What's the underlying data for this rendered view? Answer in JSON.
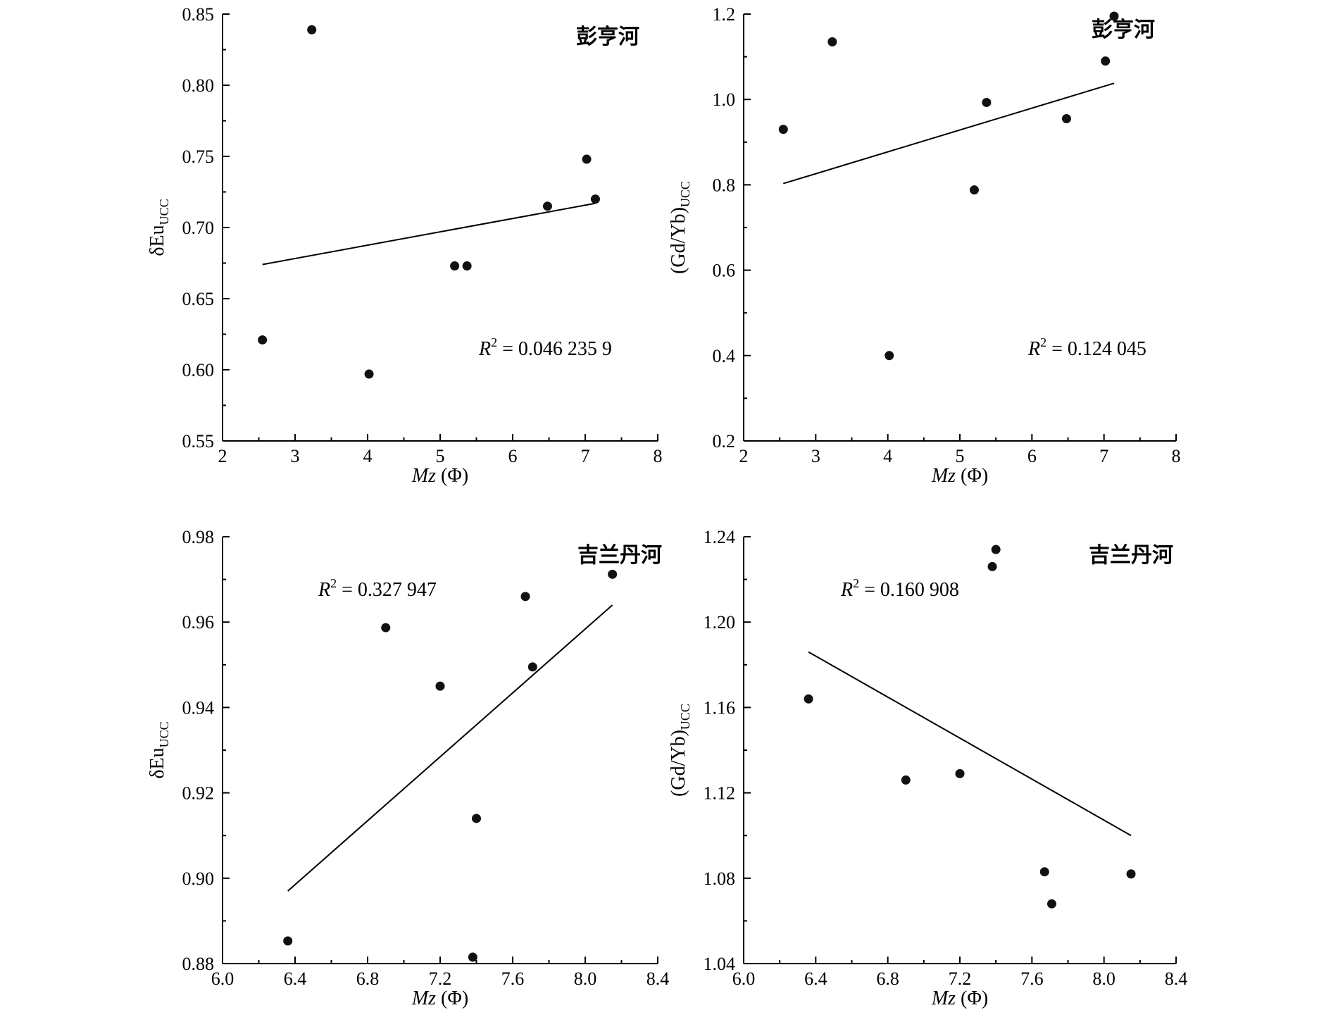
{
  "chart_data": [
    {
      "type": "scatter",
      "title": "彭亨河",
      "xlabel": "Mz (Φ)",
      "ylabel": "δEu_UCC",
      "xlabel_parts": {
        "italic": "Mz",
        "rest": " (Φ)"
      },
      "ylabel_parts": {
        "main": "δEu",
        "sub": "UCC"
      },
      "xlim": [
        2,
        8
      ],
      "ylim": [
        0.55,
        0.85
      ],
      "xticks": [
        "2",
        "3",
        "4",
        "5",
        "6",
        "7",
        "8"
      ],
      "yticks": [
        "0.55",
        "0.60",
        "0.65",
        "0.70",
        "0.75",
        "0.80",
        "0.85"
      ],
      "annotation": {
        "pre": "R",
        "sup": "2",
        "post": " = 0.046 235 9"
      },
      "points": [
        [
          2.55,
          0.621
        ],
        [
          3.23,
          0.839
        ],
        [
          4.02,
          0.597
        ],
        [
          5.2,
          0.673
        ],
        [
          5.37,
          0.673
        ],
        [
          6.48,
          0.715
        ],
        [
          7.02,
          0.748
        ],
        [
          7.14,
          0.72
        ]
      ],
      "fit_line": [
        [
          2.55,
          0.674
        ],
        [
          7.14,
          0.717
        ]
      ]
    },
    {
      "type": "scatter",
      "title": "彭亨河",
      "xlabel": "Mz (Φ)",
      "ylabel": "(Gd/Yb)_UCC",
      "xlabel_parts": {
        "italic": "Mz",
        "rest": " (Φ)"
      },
      "ylabel_parts": {
        "main": "(Gd/Yb)",
        "sub": "UCC"
      },
      "xlim": [
        2,
        8
      ],
      "ylim": [
        0.2,
        1.2
      ],
      "xticks": [
        "2",
        "3",
        "4",
        "5",
        "6",
        "7",
        "8"
      ],
      "yticks": [
        "0.2",
        "0.4",
        "0.6",
        "0.8",
        "1.0",
        "1.2"
      ],
      "annotation": {
        "pre": "R",
        "sup": "2",
        "post": " = 0.124 045"
      },
      "points": [
        [
          2.55,
          0.93
        ],
        [
          3.23,
          1.135
        ],
        [
          4.02,
          0.4
        ],
        [
          5.2,
          0.788
        ],
        [
          5.37,
          0.993
        ],
        [
          6.48,
          0.955
        ],
        [
          7.02,
          1.09
        ],
        [
          7.14,
          1.195
        ]
      ],
      "fit_line": [
        [
          2.55,
          0.803
        ],
        [
          7.14,
          1.038
        ]
      ]
    },
    {
      "type": "scatter",
      "title": "吉兰丹河",
      "xlabel": "Mz (Φ)",
      "ylabel": "δEu_UCC",
      "xlabel_parts": {
        "italic": "Mz",
        "rest": " (Φ)"
      },
      "ylabel_parts": {
        "main": "δEu",
        "sub": "UCC"
      },
      "xlim": [
        6.0,
        8.4
      ],
      "ylim": [
        0.88,
        0.98
      ],
      "xticks": [
        "6.0",
        "6.4",
        "6.8",
        "7.2",
        "7.6",
        "8.0",
        "8.4"
      ],
      "yticks": [
        "0.88",
        "0.90",
        "0.92",
        "0.94",
        "0.96",
        "0.98"
      ],
      "annotation": {
        "pre": "R",
        "sup": "2",
        "post": " = 0.327 947"
      },
      "points": [
        [
          6.36,
          0.8853
        ],
        [
          6.9,
          0.9587
        ],
        [
          7.2,
          0.945
        ],
        [
          7.38,
          0.8815
        ],
        [
          7.4,
          0.914
        ],
        [
          7.67,
          0.966
        ],
        [
          7.71,
          0.9495
        ],
        [
          8.15,
          0.9712
        ]
      ],
      "fit_line": [
        [
          6.36,
          0.897
        ],
        [
          8.15,
          0.964
        ]
      ]
    },
    {
      "type": "scatter",
      "title": "吉兰丹河",
      "xlabel": "Mz (Φ)",
      "ylabel": "(Gd/Yb)_UCC",
      "xlabel_parts": {
        "italic": "Mz",
        "rest": " (Φ)"
      },
      "ylabel_parts": {
        "main": "(Gd/Yb)",
        "sub": "UCC"
      },
      "xlim": [
        6.0,
        8.4
      ],
      "ylim": [
        1.04,
        1.24
      ],
      "xticks": [
        "6.0",
        "6.4",
        "6.8",
        "7.2",
        "7.6",
        "8.0",
        "8.4"
      ],
      "yticks": [
        "1.04",
        "1.08",
        "1.12",
        "1.16",
        "1.20",
        "1.24"
      ],
      "annotation": {
        "pre": "R",
        "sup": "2",
        "post": " = 0.160 908"
      },
      "points": [
        [
          6.36,
          1.164
        ],
        [
          6.9,
          1.126
        ],
        [
          7.2,
          1.129
        ],
        [
          7.38,
          1.226
        ],
        [
          7.4,
          1.234
        ],
        [
          7.67,
          1.083
        ],
        [
          7.71,
          1.068
        ],
        [
          8.15,
          1.082
        ]
      ],
      "fit_line": [
        [
          6.36,
          1.186
        ],
        [
          8.15,
          1.1
        ]
      ]
    }
  ]
}
